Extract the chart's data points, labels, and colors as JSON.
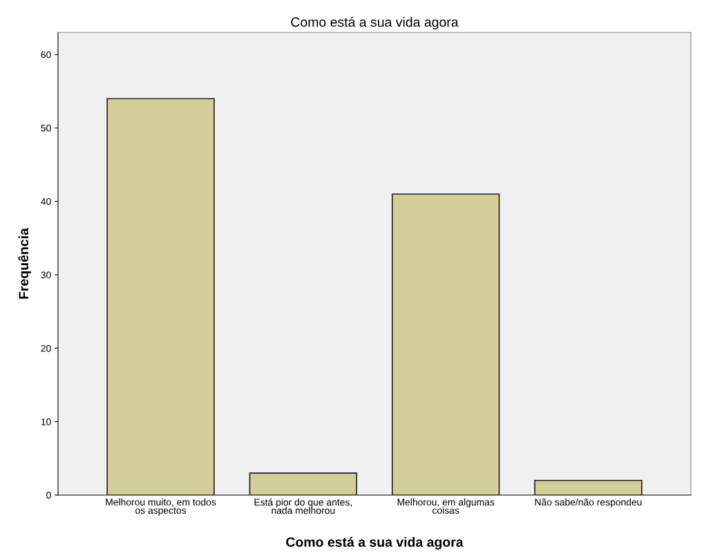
{
  "chart_data": {
    "type": "bar",
    "title": "Como está a sua vida agora",
    "xlabel": "Como está a sua vida agora",
    "ylabel": "Frequência",
    "categories": [
      "Melhorou muito, em todos\nos aspectos",
      "Está pior do que antes,\nnada melhorou",
      "Melhorou, em algumas\ncoisas",
      "Não sabe/não respondeu"
    ],
    "values": [
      54,
      3,
      41,
      2
    ],
    "color": "#d3ce97",
    "ylim": [
      0,
      63
    ],
    "yticks": [
      0,
      10,
      20,
      30,
      40,
      50,
      60
    ],
    "grid": false,
    "legend": false
  }
}
